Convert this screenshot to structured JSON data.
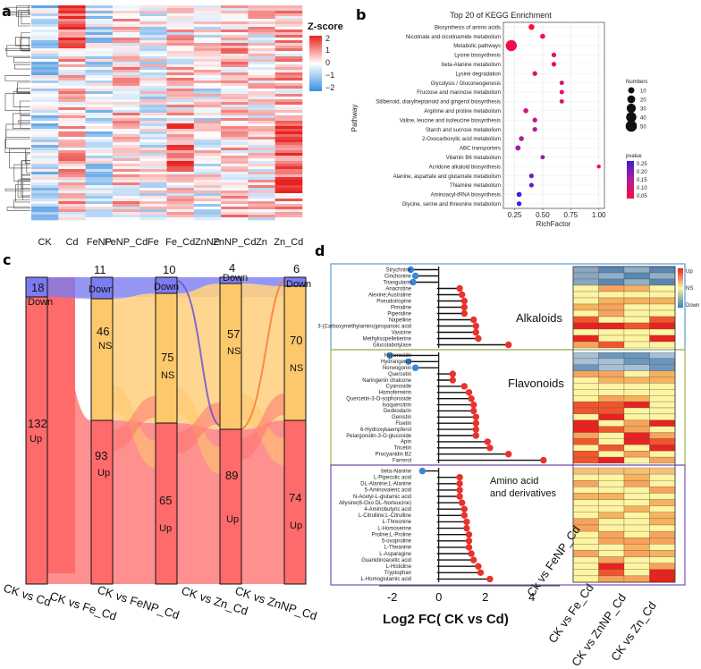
{
  "panels": {
    "a": "a",
    "b": "b",
    "c": "c",
    "d": "d"
  },
  "colors": {
    "up": "#ff6b6b",
    "ns": "#fdc86b",
    "down": "#7c7cf0",
    "heat_hi": "#e8221f",
    "heat_mid": "#ffffff",
    "heat_lo": "#3a8fe0",
    "dot_pos": "#e8322b",
    "dot_neg": "#3a86d8"
  },
  "chart_data": [
    {
      "id": "a",
      "type": "heatmap",
      "title": "",
      "columns": [
        "CK",
        "Cd",
        "FeNP",
        "FeNP_Cd",
        "Fe",
        "Fe_Cd",
        "ZnNP",
        "ZnNP_Cd",
        "Zn",
        "Zn_Cd"
      ],
      "legend_title": "Z-score",
      "legend_ticks": [
        "2",
        "1",
        "0",
        "−1",
        "−2"
      ],
      "scale_range": [
        -2,
        2
      ]
    },
    {
      "id": "b",
      "type": "scatter",
      "title": "Top 20 of KEGG Enrichment",
      "xlabel": "RichFactor",
      "ylabel": "Pathway",
      "xlim": [
        0.15,
        1.05
      ],
      "xticks": [
        "0.25",
        "0.50",
        "0.75",
        "1.00"
      ],
      "xtick_values": [
        0.25,
        0.5,
        0.75,
        1.0
      ],
      "pathways": [
        "Biosynthesis of amino acids",
        "Nicotinate and nicotinamide metabolism",
        "Metabolic pathways",
        "Lysine biosynthesis",
        "beta-Alanine metabolism",
        "Lysine degradation",
        "Glycolysis / Gluconeogenesis",
        "Fructose and mannose metabolism",
        "Stilbenoid, diarylheptanoid and gingerol biosynthesis",
        "Arginine and proline metabolism",
        "Valine, leucine and isoleucine biosynthesis",
        "Starch and sucrose metabolism",
        "2-Oxocarboxylic acid metabolism",
        "ABC transporters",
        "Vitamin B6 metabolism",
        "Acridone alkaloid biosynthesis",
        "Alanine, aspartate and glutamate metabolism",
        "Thiamine metabolism",
        "Aminoacyl-tRNA biosynthesis",
        "Glycine, serine and threonine metabolism"
      ],
      "rich_factor": [
        0.4,
        0.5,
        0.22,
        0.6,
        0.6,
        0.43,
        0.67,
        0.67,
        0.67,
        0.35,
        0.43,
        0.43,
        0.31,
        0.28,
        0.5,
        1.0,
        0.4,
        0.4,
        0.29,
        0.29
      ],
      "numbers": [
        8,
        5,
        48,
        4,
        4,
        4,
        3,
        3,
        3,
        5,
        4,
        4,
        5,
        6,
        3,
        2,
        4,
        4,
        5,
        4
      ],
      "pvalue": [
        0.02,
        0.03,
        0.04,
        0.06,
        0.06,
        0.07,
        0.08,
        0.08,
        0.08,
        0.1,
        0.12,
        0.12,
        0.13,
        0.15,
        0.16,
        0.02,
        0.2,
        0.2,
        0.24,
        0.25
      ],
      "size_legend_title": "Numbers",
      "size_legend": [
        "10",
        "20",
        "30",
        "40",
        "50"
      ],
      "size_legend_values": [
        10,
        20,
        30,
        40,
        50
      ],
      "color_legend_title": "pvalue",
      "color_legend": [
        "0.25",
        "0.20",
        "0.15",
        "0.10",
        "0.05"
      ]
    },
    {
      "id": "c",
      "type": "sankey",
      "categories": [
        "CK vs Cd",
        "CK vs Fe_Cd",
        "CK vs FeNP_Cd",
        "CK vs Zn_Cd",
        "CK vs ZnNP_Cd"
      ],
      "series": [
        {
          "name": "Down",
          "values": [
            18,
            11,
            10,
            4,
            6
          ]
        },
        {
          "name": "NS",
          "values": [
            0,
            46,
            75,
            57,
            70
          ]
        },
        {
          "name": "Up",
          "values": [
            132,
            93,
            65,
            89,
            74
          ]
        }
      ],
      "labels": {
        "down": "Down",
        "ns": "NS",
        "up": "Up"
      }
    },
    {
      "id": "d",
      "type": "lollipop",
      "xlabel": "Log2 FC( CK vs Cd)",
      "xlim": [
        -2.6,
        5.2
      ],
      "xticks": [
        "-2",
        "0",
        "2",
        "4"
      ],
      "xtick_values": [
        -2,
        0,
        2,
        4
      ],
      "groups": [
        {
          "name": "Alkaloids",
          "items": [
            "Strychnine",
            "Cinchonine",
            "Triangularin",
            "Anacrotine",
            "Alexine;Australine",
            "Pseudotropine",
            "Pimaline",
            "Piperidine",
            "Napelline",
            "3-(Carboxymethylamino)propanoic acid",
            "Vasicine",
            "Methylisopelletierine",
            "Glucotabotylase"
          ],
          "values": [
            -1.2,
            -1.0,
            -1.1,
            0.9,
            1.0,
            1.1,
            1.1,
            1.1,
            1.5,
            1.6,
            1.6,
            1.7,
            3.0
          ]
        },
        {
          "name": "Flavonoids",
          "items": [
            "Hyperoside",
            "Hydrangenol",
            "Norwogonin",
            "Quercetin",
            "Naringenin chalcone",
            "Cyanoside",
            "Homoferreirin",
            "Quercetin-3-O-sophoroside",
            "Isoquercitrin",
            "Dedeodarin",
            "Genistin",
            "Fisetin",
            "6-Hydroxykaempferol",
            "Pelargonidin-3-O-glucoside",
            "Apin",
            "Tricetin",
            "Procyanidin B2",
            "Farrerol"
          ],
          "values": [
            -2.1,
            -1.3,
            -1.0,
            0.6,
            0.6,
            1.1,
            1.3,
            1.4,
            1.5,
            1.5,
            1.6,
            1.6,
            1.6,
            1.6,
            2.1,
            2.2,
            3.0,
            4.5
          ]
        },
        {
          "name": "Amino acid",
          "name2": "and derivatives",
          "items": [
            "beta-Alanine",
            "L-Pipecolic acid",
            "DL-Alanine;L-Alanine",
            "5-Aminovaleric acid",
            "N-Acetyl-L-glutamic acid",
            "Allysine(6-Oxo DL-Norleucine)",
            "4-Aminobutyric acid",
            "L-Citrulline;L-Citrulline",
            "L-Threonine",
            "L-Homoserine",
            "Proline;L-Proline",
            "5-oxoproline",
            "L-Theanine",
            "L-Asparagine",
            "Guanidinoacetic acid",
            "L-Histidine",
            "Tryptophan",
            "L-Homoglutamic acid"
          ],
          "values": [
            -0.7,
            0.9,
            0.9,
            0.9,
            0.9,
            1.0,
            1.1,
            1.1,
            1.2,
            1.2,
            1.3,
            1.3,
            1.3,
            1.4,
            1.5,
            1.7,
            1.8,
            2.2
          ]
        }
      ],
      "heat_columns": [
        "Ck vs FeNP_Cd",
        "CK vs Fe_Cd",
        "CK vs ZnNP_Cd",
        "CK vs Zn_Cd"
      ],
      "heat_legend": [
        "Up",
        "NS",
        "Down"
      ]
    }
  ]
}
